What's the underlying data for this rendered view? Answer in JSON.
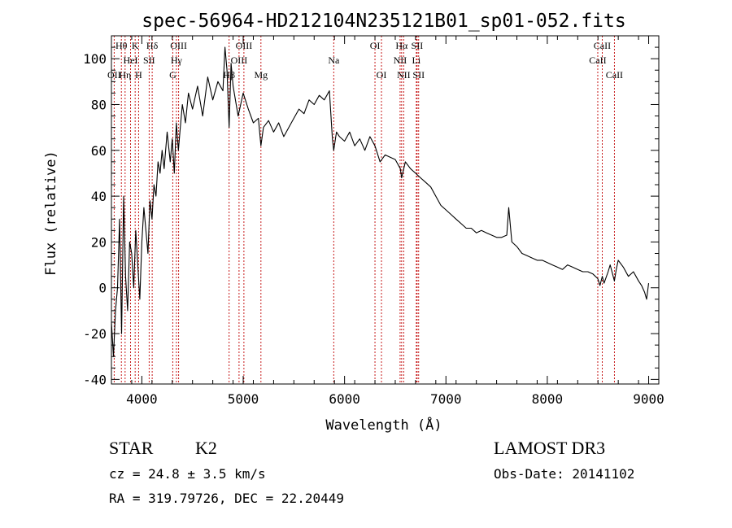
{
  "chart_data": {
    "type": "line",
    "title": "spec-56964-HD212104N235121B01_sp01-052.fits",
    "xlabel": "Wavelength (Å)",
    "ylabel": "Flux (relative)",
    "xlim": [
      3700,
      9100
    ],
    "ylim": [
      -42,
      110
    ],
    "xticks": [
      4000,
      5000,
      6000,
      7000,
      8000,
      9000
    ],
    "yticks": [
      -40,
      -20,
      0,
      20,
      40,
      60,
      80,
      100
    ],
    "grid": false,
    "series": [
      {
        "name": "spectrum",
        "x": [
          3700,
          3720,
          3740,
          3760,
          3780,
          3800,
          3820,
          3840,
          3860,
          3880,
          3900,
          3920,
          3940,
          3960,
          3980,
          4000,
          4020,
          4040,
          4060,
          4080,
          4100,
          4120,
          4140,
          4160,
          4180,
          4200,
          4220,
          4250,
          4280,
          4300,
          4320,
          4340,
          4360,
          4380,
          4400,
          4430,
          4460,
          4500,
          4550,
          4600,
          4650,
          4700,
          4750,
          4800,
          4820,
          4840,
          4861,
          4880,
          4900,
          4950,
          5000,
          5050,
          5100,
          5150,
          5175,
          5200,
          5250,
          5300,
          5350,
          5400,
          5450,
          5500,
          5550,
          5600,
          5650,
          5700,
          5750,
          5800,
          5850,
          5880,
          5893,
          5920,
          5950,
          6000,
          6050,
          6100,
          6150,
          6200,
          6250,
          6300,
          6350,
          6400,
          6450,
          6500,
          6550,
          6563,
          6600,
          6650,
          6700,
          6750,
          6800,
          6850,
          6900,
          6950,
          7000,
          7050,
          7100,
          7150,
          7200,
          7250,
          7300,
          7350,
          7400,
          7450,
          7500,
          7550,
          7600,
          7620,
          7650,
          7700,
          7750,
          7800,
          7850,
          7900,
          7950,
          8000,
          8050,
          8100,
          8150,
          8200,
          8250,
          8300,
          8350,
          8400,
          8450,
          8498,
          8520,
          8542,
          8560,
          8600,
          8620,
          8662,
          8680,
          8700,
          8750,
          8800,
          8850,
          8900,
          8930,
          8960,
          8980,
          9000
        ],
        "y": [
          -15,
          -30,
          -10,
          0,
          30,
          -20,
          40,
          5,
          -10,
          20,
          15,
          0,
          25,
          10,
          -5,
          20,
          35,
          25,
          15,
          38,
          30,
          45,
          40,
          55,
          50,
          60,
          52,
          68,
          55,
          65,
          50,
          72,
          60,
          70,
          80,
          72,
          85,
          78,
          88,
          75,
          92,
          82,
          90,
          86,
          105,
          95,
          70,
          98,
          88,
          75,
          85,
          78,
          72,
          74,
          62,
          70,
          73,
          68,
          72,
          66,
          70,
          74,
          78,
          76,
          82,
          80,
          84,
          82,
          86,
          65,
          60,
          68,
          66,
          64,
          68,
          62,
          65,
          60,
          66,
          62,
          55,
          58,
          57,
          56,
          52,
          48,
          55,
          52,
          50,
          48,
          46,
          44,
          40,
          36,
          34,
          32,
          30,
          28,
          26,
          26,
          24,
          25,
          24,
          23,
          22,
          22,
          23,
          35,
          20,
          18,
          15,
          14,
          13,
          12,
          12,
          11,
          10,
          9,
          8,
          10,
          9,
          8,
          7,
          7,
          6,
          4,
          1,
          5,
          2,
          7,
          10,
          3,
          8,
          12,
          9,
          5,
          7,
          3,
          1,
          -2,
          -5,
          2
        ]
      }
    ],
    "lines": [
      {
        "label": "Hθ",
        "wave": 3798,
        "row": 0
      },
      {
        "label": "OII",
        "wave": 3727,
        "row": 2
      },
      {
        "label": "Hη",
        "wave": 3835,
        "row": 2
      },
      {
        "label": "HeI",
        "wave": 3889,
        "row": 1
      },
      {
        "label": "H",
        "wave": 3968,
        "row": 2
      },
      {
        "label": "K",
        "wave": 3934,
        "row": 0
      },
      {
        "label": "SII",
        "wave": 4072,
        "row": 1
      },
      {
        "label": "Hδ",
        "wave": 4102,
        "row": 0
      },
      {
        "label": "OIII",
        "wave": 4363,
        "row": 0
      },
      {
        "label": "Hγ",
        "wave": 4341,
        "row": 1
      },
      {
        "label": "G",
        "wave": 4305,
        "row": 2
      },
      {
        "label": "Hβ",
        "wave": 4861,
        "row": 2
      },
      {
        "label": "OIII",
        "wave": 4959,
        "row": 1
      },
      {
        "label": "OIII",
        "wave": 5007,
        "row": 0
      },
      {
        "label": "Mg",
        "wave": 5175,
        "row": 2
      },
      {
        "label": "Na",
        "wave": 5893,
        "row": 1
      },
      {
        "label": "OI",
        "wave": 6300,
        "row": 0
      },
      {
        "label": "OI",
        "wave": 6364,
        "row": 2
      },
      {
        "label": "NII",
        "wave": 6548,
        "row": 1
      },
      {
        "label": "Hα",
        "wave": 6563,
        "row": 0
      },
      {
        "label": "NII",
        "wave": 6583,
        "row": 2
      },
      {
        "label": "Li",
        "wave": 6708,
        "row": 1
      },
      {
        "label": "SII",
        "wave": 6716,
        "row": 0
      },
      {
        "label": "SII",
        "wave": 6731,
        "row": 2
      },
      {
        "label": "CaII",
        "wave": 8498,
        "row": 1
      },
      {
        "label": "CaII",
        "wave": 8542,
        "row": 0
      },
      {
        "label": "CaII",
        "wave": 8662,
        "row": 2
      }
    ]
  },
  "info": {
    "object_class": "STAR",
    "subclass": "K2",
    "survey": "LAMOST DR3",
    "redshift": "cz = 24.8 ± 3.5 km/s",
    "obs_date": "Obs-Date: 20141102",
    "coords": "RA = 319.79726, DEC =  22.20449"
  },
  "colors": {
    "spectrum": "#000000",
    "line_markers": "#c00000",
    "axes": "#000000"
  }
}
